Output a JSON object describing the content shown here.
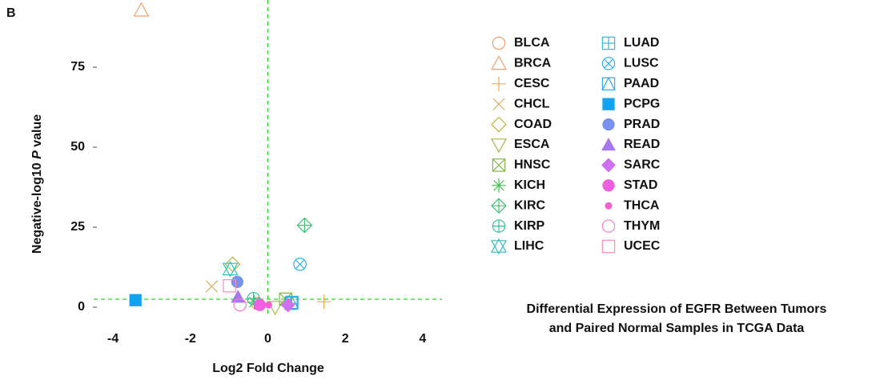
{
  "chart_data": {
    "type": "scatter",
    "panel_label": "B",
    "title": [
      "Differential Expression of EGFR Between Tumors",
      "and Paired Normal Samples in TCGA Data"
    ],
    "xlabel": "Log2 Fold Change",
    "ylabel": [
      "Negative-log10 ",
      "P",
      " value"
    ],
    "xlim": [
      -4.5,
      4.5
    ],
    "ylim": [
      -3,
      96
    ],
    "xticks": [
      -4,
      -2,
      0,
      2,
      4
    ],
    "yticks": [
      0,
      25,
      50,
      75
    ],
    "vline": 0,
    "hline": 2.5,
    "ref_color": "#22dd22",
    "series": [
      {
        "name": "BLCA",
        "color": "#f4a06a",
        "marker": "circle",
        "x": [
          -0.27
        ],
        "values": [
          1.2
        ]
      },
      {
        "name": "BRCA",
        "color": "#f4a06a",
        "marker": "triangle",
        "x": [
          -3.27
        ],
        "values": [
          92.8
        ]
      },
      {
        "name": "CESC",
        "color": "#eeaa50",
        "marker": "plus",
        "x": [
          1.45
        ],
        "values": [
          1.7
        ]
      },
      {
        "name": "CHCL",
        "color": "#d8b060",
        "marker": "cross",
        "x": [
          -1.45
        ],
        "values": [
          6.5
        ]
      },
      {
        "name": "COAD",
        "color": "#bcb840",
        "marker": "diamond",
        "x": [
          -0.91
        ],
        "values": [
          13.4
        ]
      },
      {
        "name": "ESCA",
        "color": "#a8b840",
        "marker": "tri-down",
        "x": [
          0.19
        ],
        "values": [
          0
        ]
      },
      {
        "name": "HNSC",
        "color": "#80b840",
        "marker": "square-x",
        "x": [
          0.46
        ],
        "values": [
          2.5
        ]
      },
      {
        "name": "KICH",
        "color": "#40c050",
        "marker": "asterisk",
        "x": [
          -0.35
        ],
        "values": [
          1.5
        ]
      },
      {
        "name": "KIRC",
        "color": "#40c078",
        "marker": "diamond-plus",
        "x": [
          0.95
        ],
        "values": [
          25.6
        ]
      },
      {
        "name": "KIRP",
        "color": "#30c098",
        "marker": "circle-plus",
        "x": [
          -0.37
        ],
        "values": [
          2.7
        ]
      },
      {
        "name": "LIHC",
        "color": "#30c4bc",
        "marker": "star-david",
        "x": [
          -0.97
        ],
        "values": [
          11.9
        ]
      },
      {
        "name": "LUAD",
        "color": "#30b8d4",
        "marker": "square-plus",
        "x": [
          0.6
        ],
        "values": [
          1.2
        ]
      },
      {
        "name": "LUSC",
        "color": "#30b0e4",
        "marker": "circle-x",
        "x": [
          0.83
        ],
        "values": [
          13.4
        ]
      },
      {
        "name": "PAAD",
        "color": "#30a8ee",
        "marker": "square-triangle",
        "x": [
          0.62
        ],
        "values": [
          1.5
        ]
      },
      {
        "name": "PCPG",
        "color": "#10a4f0",
        "marker": "square-filled",
        "x": [
          -3.42
        ],
        "values": [
          2.2
        ]
      },
      {
        "name": "PRAD",
        "color": "#7890f0",
        "marker": "circle-filled",
        "x": [
          -0.79
        ],
        "values": [
          7.9
        ]
      },
      {
        "name": "READ",
        "color": "#a878f0",
        "marker": "triangle-filled",
        "x": [
          -0.77
        ],
        "values": [
          3.2
        ]
      },
      {
        "name": "SARC",
        "color": "#d070f0",
        "marker": "diamond-filled",
        "x": [
          0.52
        ],
        "values": [
          0.7
        ]
      },
      {
        "name": "STAD",
        "color": "#ee60e0",
        "marker": "circle-filled",
        "x": [
          -0.21
        ],
        "values": [
          0.7
        ]
      },
      {
        "name": "THCA",
        "color": "#f060d0",
        "marker": "dot",
        "x": [
          0.02
        ],
        "values": [
          0.7
        ]
      },
      {
        "name": "THYM",
        "color": "#f480c0",
        "marker": "circle",
        "x": [
          -0.72
        ],
        "values": [
          0.7
        ]
      },
      {
        "name": "UCEC",
        "color": "#f490b0",
        "marker": "square",
        "x": [
          -0.99
        ],
        "values": [
          6.7
        ]
      }
    ]
  }
}
